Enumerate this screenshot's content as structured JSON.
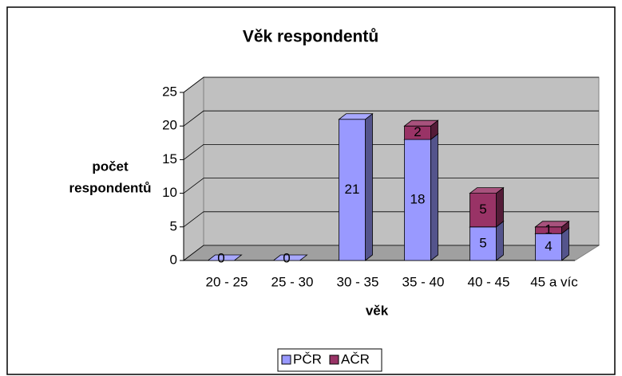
{
  "chart_data": {
    "type": "bar3d_stacked",
    "title": "Věk respondentů",
    "ylabel": [
      "počet",
      "respondentů"
    ],
    "xlabel": "věk",
    "categories": [
      "20 - 25",
      "25 - 30",
      "30 - 35",
      "35 - 40",
      "40 - 45",
      "45 a víc"
    ],
    "series": [
      {
        "name": "PČR",
        "color": "#9999ff",
        "values": [
          0,
          0,
          21,
          18,
          5,
          4
        ]
      },
      {
        "name": "AČR",
        "color": "#993366",
        "values": [
          null,
          null,
          null,
          2,
          5,
          1
        ]
      }
    ],
    "ylim": [
      0,
      25
    ],
    "yticks": [
      0,
      5,
      10,
      15,
      20,
      25
    ],
    "grid": true,
    "legend": "bottom"
  }
}
